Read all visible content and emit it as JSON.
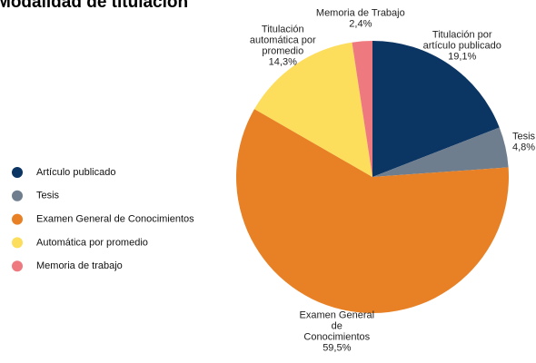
{
  "chart_data": {
    "type": "pie",
    "title": "Modalidad de titulación",
    "categories": [
      "Artículo publicado",
      "Tesis",
      "Examen General de Conocimientos",
      "Automática por promedio",
      "Memoria de trabajo"
    ],
    "slice_labels": [
      [
        "Titulación por",
        "artículo publicado"
      ],
      [
        "Tesis"
      ],
      [
        "Examen General",
        "de",
        "Conocimientos"
      ],
      [
        "Titulación",
        "automática por",
        "promedio"
      ],
      [
        "Memoria de Trabajo"
      ]
    ],
    "values": [
      19.1,
      4.8,
      59.5,
      14.3,
      2.4
    ],
    "value_labels": [
      "19,1%",
      "4,8%",
      "59,5%",
      "14,3%",
      "2,4%"
    ],
    "colors": [
      "#0b3563",
      "#6e7e8f",
      "#e88126",
      "#fddd5c",
      "#ee7a80"
    ],
    "legend": "left"
  }
}
